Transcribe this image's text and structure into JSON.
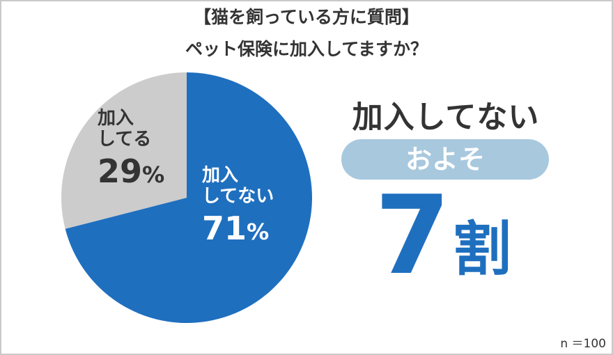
{
  "title": {
    "line1": "【猫を飼っている方に質問】",
    "line2": "ペット保険に加入してますか？"
  },
  "colors": {
    "no": "#1f6fbf",
    "yes": "#cccccc",
    "pill": "#a8c8de",
    "big": "#1f6fbf",
    "text": "#333333"
  },
  "chart_data": {
    "type": "pie",
    "title": "【猫を飼っている方に質問】ペット保険に加入してますか？",
    "slices": [
      {
        "label_line1": "加入",
        "label_line2": "してない",
        "value": 71,
        "percent": "71",
        "unit": "%",
        "color": "#1f6fbf"
      },
      {
        "label_line1": "加入",
        "label_line2": "してる",
        "value": 29,
        "percent": "29",
        "unit": "%",
        "color": "#cccccc"
      }
    ]
  },
  "callout": {
    "headline": "加入してない",
    "pill": "およそ",
    "big_number": "7",
    "big_unit": "割"
  },
  "note": "n ＝100"
}
